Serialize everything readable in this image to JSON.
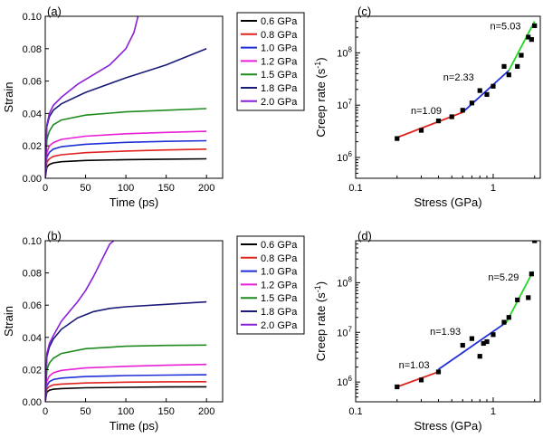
{
  "chart_data": [
    {
      "panel": "(a)",
      "type": "line",
      "xlabel": "Time (ps)",
      "ylabel": "Strain",
      "xlim": [
        0,
        220
      ],
      "ylim": [
        0,
        0.1
      ],
      "xticks": [
        "0",
        "50",
        "100",
        "150",
        "200"
      ],
      "yticks": [
        "0.00",
        "0.02",
        "0.04",
        "0.06",
        "0.08",
        "0.10"
      ],
      "legend_position": "top-right",
      "series": [
        {
          "name": "0.6 GPa",
          "color": "#000000",
          "x": [
            0,
            2,
            5,
            10,
            20,
            50,
            100,
            150,
            200
          ],
          "y": [
            0,
            0.007,
            0.0085,
            0.0095,
            0.0102,
            0.011,
            0.0115,
            0.0118,
            0.012
          ]
        },
        {
          "name": "0.8 GPa",
          "color": "#e0231f",
          "x": [
            0,
            2,
            5,
            10,
            20,
            50,
            100,
            150,
            200
          ],
          "y": [
            0,
            0.01,
            0.012,
            0.0135,
            0.0145,
            0.0158,
            0.0168,
            0.0175,
            0.018
          ]
        },
        {
          "name": "1.0 GPa",
          "color": "#1f2fd8",
          "x": [
            0,
            2,
            5,
            10,
            20,
            50,
            100,
            150,
            200
          ],
          "y": [
            0,
            0.013,
            0.016,
            0.018,
            0.0195,
            0.021,
            0.0222,
            0.0228,
            0.0232
          ]
        },
        {
          "name": "1.2 GPa",
          "color": "#e81fd6",
          "x": [
            0,
            2,
            5,
            10,
            20,
            50,
            100,
            150,
            200
          ],
          "y": [
            0,
            0.016,
            0.02,
            0.022,
            0.024,
            0.026,
            0.0275,
            0.0283,
            0.029
          ]
        },
        {
          "name": "1.5 GPa",
          "color": "#1f8b1f",
          "x": [
            0,
            2,
            5,
            10,
            20,
            50,
            100,
            150,
            200
          ],
          "y": [
            0,
            0.024,
            0.029,
            0.033,
            0.036,
            0.039,
            0.041,
            0.042,
            0.043
          ]
        },
        {
          "name": "1.8 GPa",
          "color": "#1a1a7a",
          "x": [
            0,
            2,
            5,
            10,
            20,
            50,
            100,
            150,
            200
          ],
          "y": [
            0,
            0.032,
            0.038,
            0.042,
            0.046,
            0.053,
            0.062,
            0.07,
            0.08
          ]
        },
        {
          "name": "2.0 GPa",
          "color": "#8a1fd8",
          "x": [
            0,
            2,
            5,
            10,
            20,
            40,
            60,
            80,
            100,
            110,
            115
          ],
          "y": [
            0,
            0.033,
            0.04,
            0.045,
            0.05,
            0.058,
            0.064,
            0.07,
            0.08,
            0.09,
            0.1
          ]
        }
      ]
    },
    {
      "panel": "(b)",
      "type": "line",
      "xlabel": "Time (ps)",
      "ylabel": "Strain",
      "xlim": [
        0,
        220
      ],
      "ylim": [
        0,
        0.1
      ],
      "xticks": [
        "0",
        "50",
        "100",
        "150",
        "200"
      ],
      "yticks": [
        "0.00",
        "0.02",
        "0.04",
        "0.06",
        "0.08",
        "0.10"
      ],
      "legend_position": "top-right",
      "series": [
        {
          "name": "0.6 GPa",
          "color": "#000000",
          "x": [
            0,
            2,
            5,
            10,
            20,
            50,
            100,
            150,
            200
          ],
          "y": [
            0,
            0.006,
            0.0072,
            0.0078,
            0.0082,
            0.0087,
            0.009,
            0.0092,
            0.0093
          ]
        },
        {
          "name": "0.8 GPa",
          "color": "#e0231f",
          "x": [
            0,
            2,
            5,
            10,
            20,
            50,
            100,
            150,
            200
          ],
          "y": [
            0,
            0.008,
            0.0095,
            0.0105,
            0.011,
            0.0117,
            0.0122,
            0.0124,
            0.0125
          ]
        },
        {
          "name": "1.0 GPa",
          "color": "#1f2fd8",
          "x": [
            0,
            2,
            5,
            10,
            20,
            50,
            100,
            150,
            200
          ],
          "y": [
            0,
            0.01,
            0.0125,
            0.0138,
            0.0147,
            0.0157,
            0.0163,
            0.0166,
            0.0168
          ]
        },
        {
          "name": "1.2 GPa",
          "color": "#e81fd6",
          "x": [
            0,
            2,
            5,
            10,
            20,
            50,
            100,
            150,
            200
          ],
          "y": [
            0,
            0.013,
            0.016,
            0.018,
            0.0195,
            0.021,
            0.022,
            0.0227,
            0.0232
          ]
        },
        {
          "name": "1.5 GPa",
          "color": "#1f8b1f",
          "x": [
            0,
            2,
            5,
            10,
            20,
            50,
            100,
            150,
            200
          ],
          "y": [
            0,
            0.02,
            0.024,
            0.027,
            0.03,
            0.033,
            0.0345,
            0.035,
            0.0352
          ]
        },
        {
          "name": "1.8 GPa",
          "color": "#1a1a7a",
          "x": [
            0,
            2,
            5,
            10,
            20,
            40,
            60,
            80,
            100,
            150,
            200
          ],
          "y": [
            0,
            0.028,
            0.034,
            0.039,
            0.045,
            0.052,
            0.056,
            0.058,
            0.059,
            0.0605,
            0.062
          ]
        },
        {
          "name": "2.0 GPa",
          "color": "#8a1fd8",
          "x": [
            0,
            2,
            5,
            10,
            20,
            30,
            40,
            50,
            60,
            70,
            80,
            85
          ],
          "y": [
            0,
            0.03,
            0.036,
            0.041,
            0.05,
            0.056,
            0.062,
            0.069,
            0.078,
            0.088,
            0.098,
            0.1
          ]
        }
      ]
    },
    {
      "panel": "(c)",
      "type": "scatter",
      "xlabel": "Stress (GPa)",
      "ylabel": "Creep rate (s",
      "ylabel_sup": "-1",
      "ylabel_close": ")",
      "xscale": "log",
      "yscale": "log",
      "xlim": [
        0.1,
        2.2
      ],
      "ylim": [
        400000.0,
        500000000.0
      ],
      "xticks": [
        {
          "v": 0.1,
          "label": "0.1"
        },
        {
          "v": 1,
          "label": "1"
        }
      ],
      "yticks": [
        {
          "v": 1000000.0,
          "base": "10",
          "exp": "6"
        },
        {
          "v": 10000000.0,
          "base": "10",
          "exp": "7"
        },
        {
          "v": 100000000.0,
          "base": "10",
          "exp": "8"
        }
      ],
      "points": {
        "x": [
          0.2,
          0.3,
          0.4,
          0.5,
          0.6,
          0.7,
          0.8,
          0.9,
          1.0,
          1.2,
          1.3,
          1.5,
          1.6,
          1.8,
          1.9,
          2.0
        ],
        "y": [
          2300000.0,
          3300000.0,
          5000000.0,
          6000000.0,
          8000000.0,
          11000000.0,
          19000000.0,
          16000000.0,
          23000000.0,
          55000000.0,
          38000000.0,
          55000000.0,
          90000000.0,
          200000000.0,
          180000000.0,
          330000000.0
        ]
      },
      "fits": [
        {
          "label": "n=1.09",
          "color": "#e0231f",
          "x": [
            0.2,
            0.6
          ],
          "y": [
            2400000.0,
            7300000.0
          ]
        },
        {
          "label": "n=2.33",
          "color": "#1f2fd8",
          "x": [
            0.6,
            1.3
          ],
          "y": [
            7300000.0,
            46000000.0
          ]
        },
        {
          "label": "n=5.03",
          "color": "#22d622",
          "x": [
            1.3,
            2.0
          ],
          "y": [
            46000000.0,
            400000000.0
          ]
        }
      ]
    },
    {
      "panel": "(d)",
      "type": "scatter",
      "xlabel": "Stress (GPa)",
      "ylabel": "Creep rate (s",
      "ylabel_sup": "-1",
      "ylabel_close": ")",
      "xscale": "log",
      "yscale": "log",
      "xlim": [
        0.1,
        2.2
      ],
      "ylim": [
        400000.0,
        700000000.0
      ],
      "xticks": [
        {
          "v": 0.1,
          "label": "0.1"
        },
        {
          "v": 1,
          "label": "1"
        }
      ],
      "yticks": [
        {
          "v": 1000000.0,
          "base": "10",
          "exp": "6"
        },
        {
          "v": 10000000.0,
          "base": "10",
          "exp": "7"
        },
        {
          "v": 100000000.0,
          "base": "10",
          "exp": "8"
        }
      ],
      "points": {
        "x": [
          0.2,
          0.3,
          0.4,
          0.6,
          0.7,
          0.8,
          0.85,
          0.9,
          1.0,
          1.2,
          1.3,
          1.5,
          1.8,
          1.9,
          2.0
        ],
        "y": [
          800000.0,
          1100000.0,
          1600000.0,
          5500000.0,
          7500000.0,
          3300000.0,
          6000000.0,
          6500000.0,
          9000000.0,
          16000000.0,
          20000000.0,
          45000000.0,
          50000000.0,
          150000000.0,
          700000000.0
        ]
      },
      "fits": [
        {
          "label": "n=1.03",
          "color": "#e0231f",
          "x": [
            0.2,
            0.4
          ],
          "y": [
            800000.0,
            1600000.0
          ]
        },
        {
          "label": "n=1.93",
          "color": "#1f2fd8",
          "x": [
            0.4,
            1.25
          ],
          "y": [
            1800000.0,
            16000000.0
          ]
        },
        {
          "label": "n=5.29",
          "color": "#22d622",
          "x": [
            1.25,
            1.95
          ],
          "y": [
            16000000.0,
            170000000.0
          ]
        }
      ]
    }
  ]
}
